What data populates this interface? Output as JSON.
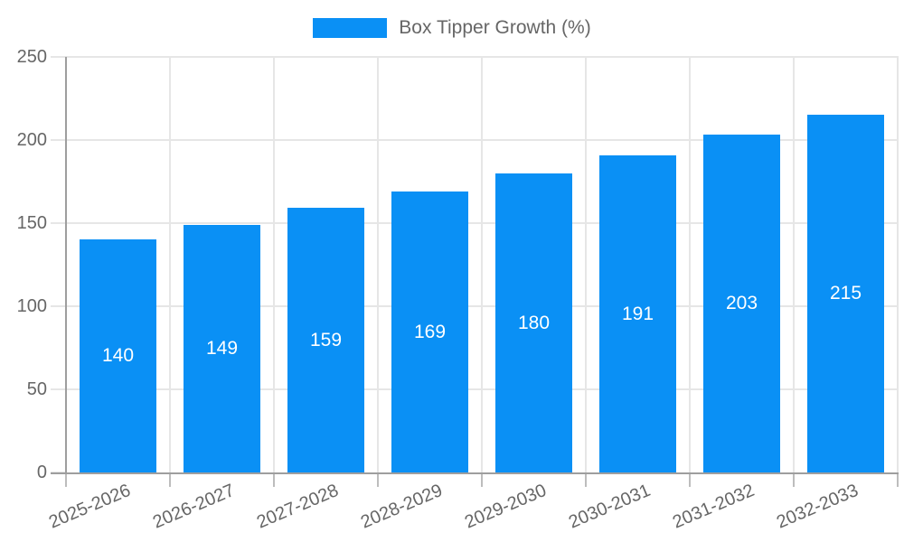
{
  "chart_data": {
    "type": "bar",
    "legend": {
      "label": "Box Tipper Growth (%)",
      "position": "top"
    },
    "categories": [
      "2025-2026",
      "2026-2027",
      "2027-2028",
      "2028-2029",
      "2029-2030",
      "2030-2031",
      "2031-2032",
      "2032-2033"
    ],
    "series": [
      {
        "name": "Box Tipper Growth (%)",
        "values": [
          140,
          149,
          159,
          169,
          180,
          191,
          203,
          215
        ]
      }
    ],
    "ylim": [
      0,
      250
    ],
    "yticks": [
      0,
      50,
      100,
      150,
      200,
      250
    ],
    "grid": true,
    "colors": {
      "bar": "#0a90f5",
      "bar_value_text": "#ffffff",
      "axis_text": "#666666",
      "gridline": "#e6e6e6",
      "axis_line": "#9e9e9e",
      "tick_mark": "#bdbdbd"
    }
  }
}
